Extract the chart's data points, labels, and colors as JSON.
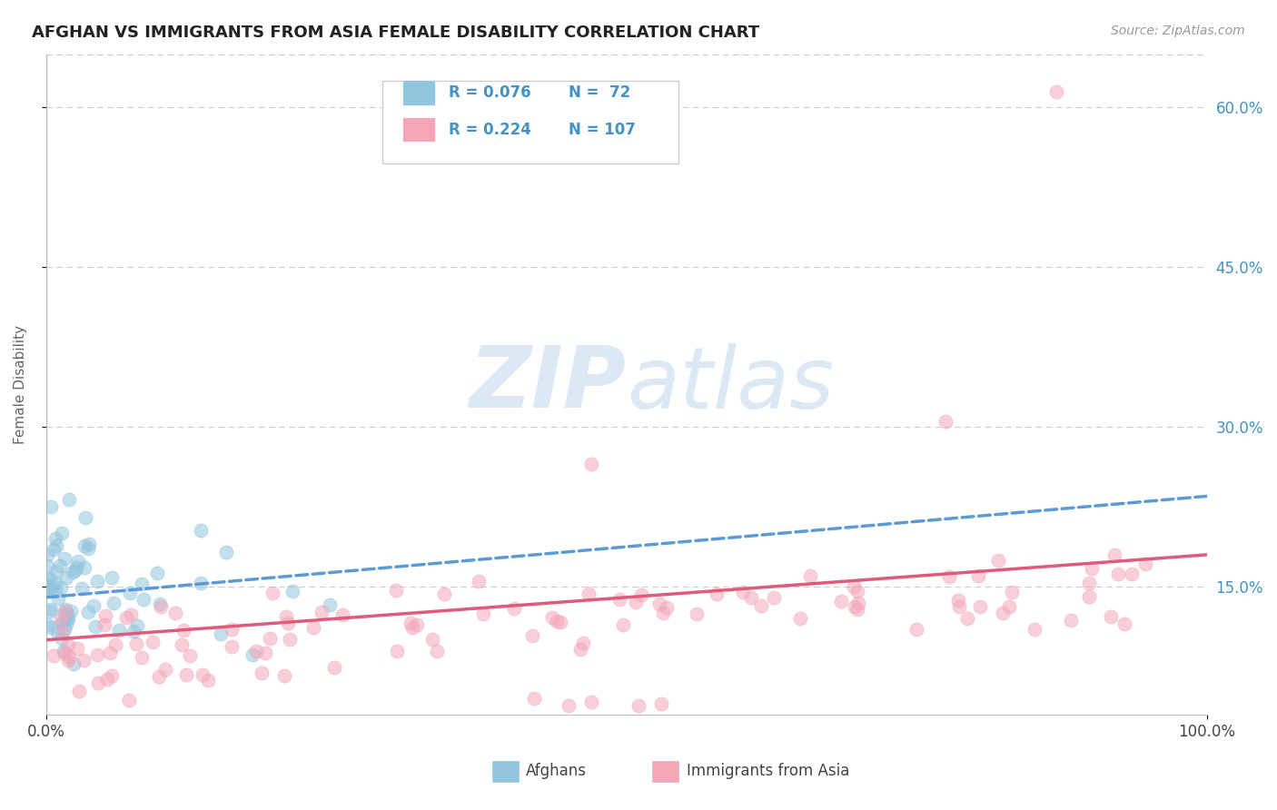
{
  "title": "AFGHAN VS IMMIGRANTS FROM ASIA FEMALE DISABILITY CORRELATION CHART",
  "source": "Source: ZipAtlas.com",
  "ylabel": "Female Disability",
  "y_ticks": [
    "15.0%",
    "30.0%",
    "45.0%",
    "60.0%"
  ],
  "y_tick_vals": [
    0.15,
    0.3,
    0.45,
    0.6
  ],
  "x_lim": [
    0.0,
    1.0
  ],
  "y_lim": [
    0.03,
    0.65
  ],
  "afghans_R": 0.076,
  "afghans_N": 72,
  "asia_R": 0.224,
  "asia_N": 107,
  "afghans_color": "#92c5de",
  "asia_color": "#f4a6b8",
  "afghans_trend_color": "#5b9bd5",
  "asia_trend_color": "#e05a7a",
  "watermark_color": "#dce9f5",
  "legend_labels": [
    "Afghans",
    "Immigrants from Asia"
  ],
  "background_color": "#ffffff",
  "grid_color": "#cccccc",
  "tick_color": "#4292c6"
}
